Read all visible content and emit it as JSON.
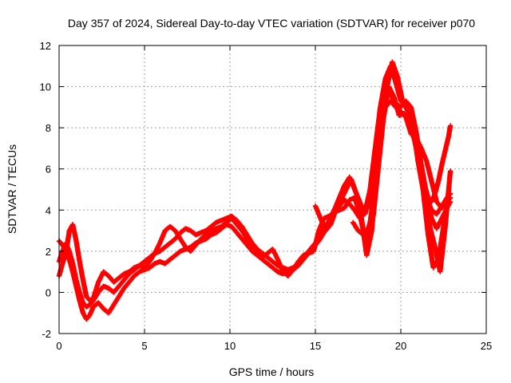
{
  "chart_data": {
    "type": "scatter",
    "title": "Day 357 of 2024, Sidereal Day-to-day VTEC variation (SDTVAR) for receiver p070",
    "xlabel": "GPS time / hours",
    "ylabel": "SDTVAR / TECUs",
    "xlim": [
      0,
      25
    ],
    "ylim": [
      -2,
      12
    ],
    "xticks": [
      "0",
      "5",
      "10",
      "15",
      "20",
      "25"
    ],
    "yticks": [
      "-2",
      "0",
      "2",
      "4",
      "6",
      "8",
      "10",
      "12"
    ],
    "grid": true,
    "marker": "+",
    "color": "#ff0000",
    "series": [
      {
        "x": [
          0.0,
          0.2,
          0.4,
          0.6,
          0.8,
          1.0,
          1.2,
          1.4,
          1.6,
          1.8,
          2.0,
          2.3,
          2.6,
          2.9,
          3.2,
          3.5,
          3.8,
          4.1,
          4.4,
          4.7,
          5.0,
          5.3,
          5.6,
          5.9,
          6.2,
          6.5,
          6.8,
          7.1,
          7.4,
          7.7,
          8.0,
          8.3,
          8.6,
          8.9,
          9.2,
          9.5,
          9.8,
          10.1,
          10.4,
          10.7,
          11.0,
          11.3,
          11.6,
          11.9,
          12.2,
          12.5,
          12.8,
          13.1,
          13.4,
          13.7,
          14.0,
          14.3,
          14.6,
          14.9,
          15.2,
          15.5,
          15.8,
          16.1,
          16.4,
          16.7,
          17.0,
          17.3,
          17.6,
          17.9,
          18.2,
          18.5,
          18.8,
          19.1,
          19.4,
          19.7,
          20.0,
          20.3,
          20.6,
          20.9,
          21.2,
          21.5,
          21.8,
          22.1,
          22.4,
          22.7,
          22.9
        ],
        "y": [
          2.5,
          2.3,
          2.0,
          1.6,
          1.0,
          0.3,
          -0.4,
          -1.0,
          -1.3,
          -1.1,
          -0.7,
          -0.5,
          -0.8,
          -1.0,
          -0.6,
          -0.2,
          0.2,
          0.5,
          0.8,
          1.0,
          1.1,
          1.2,
          1.4,
          1.5,
          1.4,
          1.6,
          1.8,
          2.0,
          2.1,
          2.2,
          2.4,
          2.5,
          2.6,
          2.8,
          2.9,
          3.1,
          3.3,
          3.2,
          2.9,
          2.6,
          2.3,
          2.0,
          1.8,
          1.6,
          1.4,
          1.2,
          1.0,
          0.9,
          1.0,
          1.1,
          1.3,
          1.6,
          1.9,
          2.2,
          2.5,
          2.9,
          3.3,
          3.8,
          4.2,
          4.5,
          4.3,
          4.0,
          3.6,
          3.9,
          5.0,
          7.0,
          9.0,
          10.4,
          11.0,
          10.2,
          9.3,
          9.0,
          8.4,
          7.2,
          5.8,
          4.6,
          4.0,
          3.8,
          4.2,
          4.6,
          4.8
        ]
      },
      {
        "x": [
          0.0,
          0.2,
          0.4,
          0.6,
          0.8,
          1.0,
          1.2,
          1.4,
          1.6,
          1.8,
          2.0,
          2.3,
          2.6,
          2.9,
          3.2,
          3.5,
          3.8,
          4.1,
          4.4,
          4.7,
          5.0,
          5.3,
          5.6,
          5.9,
          6.2,
          6.5,
          6.8,
          7.1,
          7.4,
          7.7,
          8.0,
          8.3,
          8.6,
          8.9,
          9.2,
          9.5,
          9.8,
          10.1,
          10.4,
          10.7,
          11.0,
          11.3,
          11.6,
          11.9,
          12.2,
          12.5,
          12.8,
          13.1,
          13.4,
          13.7,
          14.0,
          14.3,
          14.6,
          14.9,
          15.2,
          15.5,
          15.8,
          16.1,
          16.4,
          16.7,
          17.0,
          17.3,
          17.6,
          17.9,
          18.2,
          18.5,
          18.8,
          19.1,
          19.4,
          19.7,
          20.0,
          20.3,
          20.6,
          20.9,
          21.2,
          21.5,
          21.8,
          22.1,
          22.4,
          22.7,
          22.9
        ],
        "y": [
          1.5,
          2.0,
          2.4,
          2.0,
          1.4,
          0.6,
          0.0,
          -0.5,
          -0.7,
          -0.6,
          -0.4,
          0.0,
          0.3,
          0.2,
          0.0,
          0.3,
          0.6,
          0.9,
          1.1,
          1.3,
          1.5,
          1.7,
          1.9,
          2.0,
          2.2,
          2.4,
          2.6,
          2.9,
          3.1,
          3.0,
          2.8,
          2.9,
          3.0,
          3.2,
          3.4,
          3.5,
          3.6,
          3.7,
          3.5,
          3.2,
          2.8,
          2.4,
          2.1,
          1.9,
          1.7,
          1.5,
          1.3,
          1.2,
          1.1,
          1.2,
          1.4,
          1.7,
          2.0,
          2.3,
          2.6,
          3.0,
          3.5,
          4.0,
          4.6,
          5.2,
          5.6,
          5.0,
          4.4,
          3.8,
          4.6,
          6.5,
          8.3,
          9.5,
          9.6,
          9.2,
          9.0,
          9.3,
          9.0,
          7.8,
          6.2,
          4.8,
          3.6,
          3.1,
          3.6,
          4.1,
          4.4
        ]
      },
      {
        "x": [
          0.0,
          0.2,
          0.4,
          0.6,
          0.8,
          1.0,
          1.2,
          1.4,
          1.6,
          1.8,
          2.0,
          2.3,
          2.6,
          2.9,
          3.2,
          3.5,
          3.8,
          4.1,
          4.4,
          4.7,
          5.0,
          5.3,
          5.6,
          5.9,
          6.2,
          6.5,
          6.8,
          7.1,
          7.4,
          7.7,
          8.0,
          8.3,
          8.6,
          8.9,
          9.2,
          9.5,
          9.8,
          10.1,
          10.4,
          10.7,
          11.0,
          11.3,
          11.6,
          11.9,
          12.2,
          12.5,
          12.8,
          13.1,
          13.4,
          13.7,
          14.0,
          14.3,
          14.6,
          14.9,
          15.2,
          15.5,
          15.8,
          16.1,
          16.4,
          16.7,
          17.0,
          17.3,
          17.6,
          17.9,
          18.2,
          18.5,
          18.8,
          19.1,
          19.4,
          19.7,
          20.0,
          20.3,
          20.6,
          20.9,
          21.2,
          21.5,
          21.8,
          22.1,
          22.4,
          22.7,
          22.9
        ],
        "y": [
          0.8,
          1.4,
          1.9,
          3.0,
          3.3,
          2.5,
          1.5,
          0.6,
          -0.2,
          -0.4,
          -0.3,
          0.5,
          1.0,
          0.8,
          0.5,
          0.7,
          0.9,
          1.0,
          1.2,
          1.3,
          1.2,
          1.5,
          1.9,
          2.4,
          3.0,
          3.2,
          3.0,
          2.6,
          2.2,
          2.0,
          2.3,
          2.6,
          2.8,
          3.0,
          3.1,
          3.2,
          3.4,
          3.6,
          3.3,
          3.0,
          2.6,
          2.2,
          1.9,
          1.7,
          1.9,
          2.1,
          1.6,
          1.0,
          0.8,
          1.1,
          1.5,
          1.8,
          1.9,
          2.0,
          3.0,
          3.6,
          3.7,
          3.9,
          4.0,
          4.1,
          4.5,
          4.6,
          3.8,
          2.6,
          3.4,
          5.2,
          7.6,
          9.0,
          9.3,
          9.0,
          8.8,
          8.5,
          7.7,
          7.5,
          7.0,
          6.4,
          5.4,
          4.4,
          4.1,
          4.4,
          4.6
        ]
      },
      {
        "x": [
          15.0,
          15.3,
          15.6,
          15.9,
          16.2,
          16.5,
          16.8,
          17.1,
          17.4,
          17.7,
          18.0,
          18.3,
          18.6,
          18.9,
          19.2,
          19.5,
          19.8,
          20.1,
          20.4,
          20.7,
          21.0,
          21.3,
          21.6,
          21.9,
          22.2,
          22.5,
          22.8
        ],
        "y": [
          4.2,
          3.6,
          3.0,
          3.3,
          4.0,
          4.5,
          5.0,
          5.5,
          4.8,
          3.6,
          1.8,
          3.0,
          6.0,
          8.5,
          10.0,
          11.2,
          10.5,
          9.3,
          9.0,
          8.2,
          6.4,
          5.0,
          2.8,
          1.2,
          1.6,
          3.2,
          4.8
        ]
      },
      {
        "x": [
          17.2,
          17.5,
          17.8,
          18.1,
          18.4,
          18.7,
          19.0,
          19.3,
          19.6,
          19.9,
          20.2,
          20.5,
          20.8,
          21.1,
          21.4,
          21.7,
          22.0,
          22.3,
          22.6,
          22.9
        ],
        "y": [
          3.4,
          3.0,
          2.8,
          2.4,
          3.8,
          6.2,
          8.6,
          10.0,
          9.5,
          8.6,
          8.7,
          8.2,
          7.8,
          6.2,
          4.5,
          3.2,
          2.2,
          1.0,
          3.2,
          5.9
        ]
      },
      {
        "x": [
          20.6,
          20.8,
          21.0,
          21.2,
          21.4,
          21.6,
          21.8,
          22.0,
          22.2,
          22.4,
          22.6,
          22.8,
          22.9
        ],
        "y": [
          8.0,
          7.4,
          6.6,
          5.8,
          5.2,
          4.6,
          4.4,
          4.8,
          5.4,
          6.2,
          6.9,
          7.6,
          8.1
        ]
      }
    ]
  }
}
